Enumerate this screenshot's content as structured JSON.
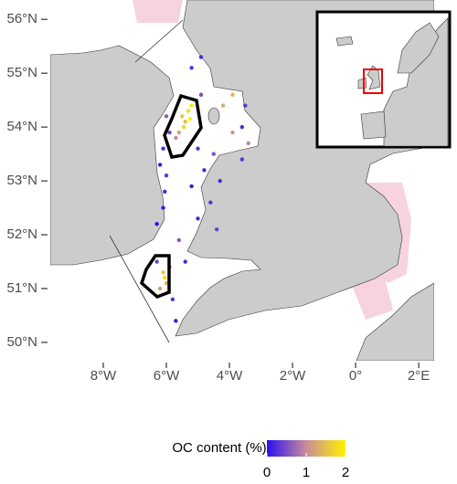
{
  "map": {
    "lonlim": [
      -9.68,
      2.49
    ],
    "latlim": [
      49.66,
      56.36
    ],
    "lat_ticks": [
      {
        "value": 56,
        "label": "56°N"
      },
      {
        "value": 55,
        "label": "55°N"
      },
      {
        "value": 54,
        "label": "54°N"
      },
      {
        "value": 53,
        "label": "53°N"
      },
      {
        "value": 52,
        "label": "52°N"
      },
      {
        "value": 51,
        "label": "51°N"
      },
      {
        "value": 50,
        "label": "50°N"
      }
    ],
    "lon_ticks": [
      {
        "value": -8,
        "label": "8°W"
      },
      {
        "value": -6,
        "label": "6°W"
      },
      {
        "value": -4,
        "label": "4°W"
      },
      {
        "value": -2,
        "label": "2°W"
      },
      {
        "value": 0,
        "label": "0°"
      },
      {
        "value": 2,
        "label": "2°E"
      }
    ],
    "points": {
      "lon": [
        -5.3,
        -5.4,
        -5.6,
        -5.2,
        -5.5,
        -5.7,
        -5.45,
        -5.25,
        -6.1,
        -6.2,
        -6.0,
        -6.05,
        -6.1,
        -6.3,
        -5.9,
        -6.0,
        -5.0,
        -4.5,
        -4.8,
        -5.2,
        -4.6,
        -5.0,
        -4.4,
        -3.9,
        -3.6,
        -3.4,
        -3.5,
        -4.2,
        -3.9,
        -4.9,
        -5.2,
        -4.9,
        -4.3,
        -3.6,
        -6.1,
        -6.0,
        -6.2,
        -5.9,
        -6.05,
        -6.3,
        -5.6,
        -5.8,
        -5.4,
        -5.7
      ],
      "lat": [
        54.3,
        54.1,
        53.9,
        54.4,
        54.2,
        53.8,
        54.0,
        54.15,
        53.6,
        53.3,
        53.1,
        52.8,
        52.5,
        52.2,
        53.9,
        54.2,
        53.6,
        53.5,
        53.2,
        52.9,
        52.6,
        52.3,
        52.1,
        53.9,
        54.0,
        53.7,
        54.4,
        54.4,
        54.6,
        54.6,
        55.1,
        55.3,
        53.0,
        53.4,
        51.3,
        51.1,
        51.0,
        51.4,
        51.2,
        51.5,
        51.9,
        50.8,
        51.5,
        50.4
      ],
      "oc": [
        1.8,
        1.5,
        1.2,
        1.9,
        1.6,
        1.0,
        1.7,
        2.0,
        0.2,
        0.1,
        0.3,
        0.2,
        0.1,
        0.0,
        0.4,
        0.6,
        0.3,
        0.5,
        0.2,
        0.1,
        0.3,
        0.2,
        0.4,
        1.1,
        0.2,
        0.9,
        0.3,
        1.3,
        1.4,
        0.5,
        0.3,
        0.2,
        0.2,
        0.3,
        1.6,
        1.4,
        1.2,
        0.7,
        1.8,
        0.4,
        0.6,
        0.3,
        0.2,
        0.1
      ]
    },
    "legend": {
      "title": "OC content (%)",
      "ticks": [
        0,
        1,
        2
      ],
      "colors": [
        "#2a10f0",
        "#c98c9a",
        "#fff200"
      ]
    }
  }
}
